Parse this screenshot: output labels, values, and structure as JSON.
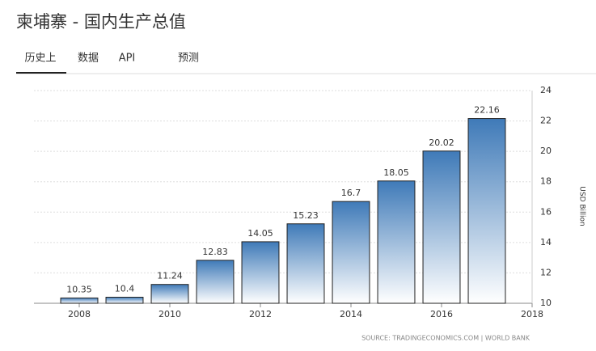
{
  "title": "柬埔寨 - 国内生产总值",
  "tabs": [
    "历史上",
    "数据",
    "API",
    "预测"
  ],
  "chart_data": {
    "type": "bar",
    "x": [
      2008,
      2009,
      2010,
      2011,
      2012,
      2013,
      2014,
      2015,
      2016,
      2017
    ],
    "values": [
      10.35,
      10.4,
      11.24,
      12.83,
      14.05,
      15.23,
      16.7,
      18.05,
      20.02,
      22.16
    ],
    "color": "#3f7ab8",
    "xlim": [
      2007,
      2018
    ],
    "xticks": [
      2008,
      2010,
      2012,
      2014,
      2016,
      2018
    ],
    "ylim": [
      10,
      24
    ],
    "yticks": [
      10,
      12,
      14,
      16,
      18,
      20,
      22,
      24
    ],
    "y_label": "USD Billion",
    "grid": true,
    "source": "SOURCE: TRADINGECONOMICS.COM | WORLD BANK"
  }
}
